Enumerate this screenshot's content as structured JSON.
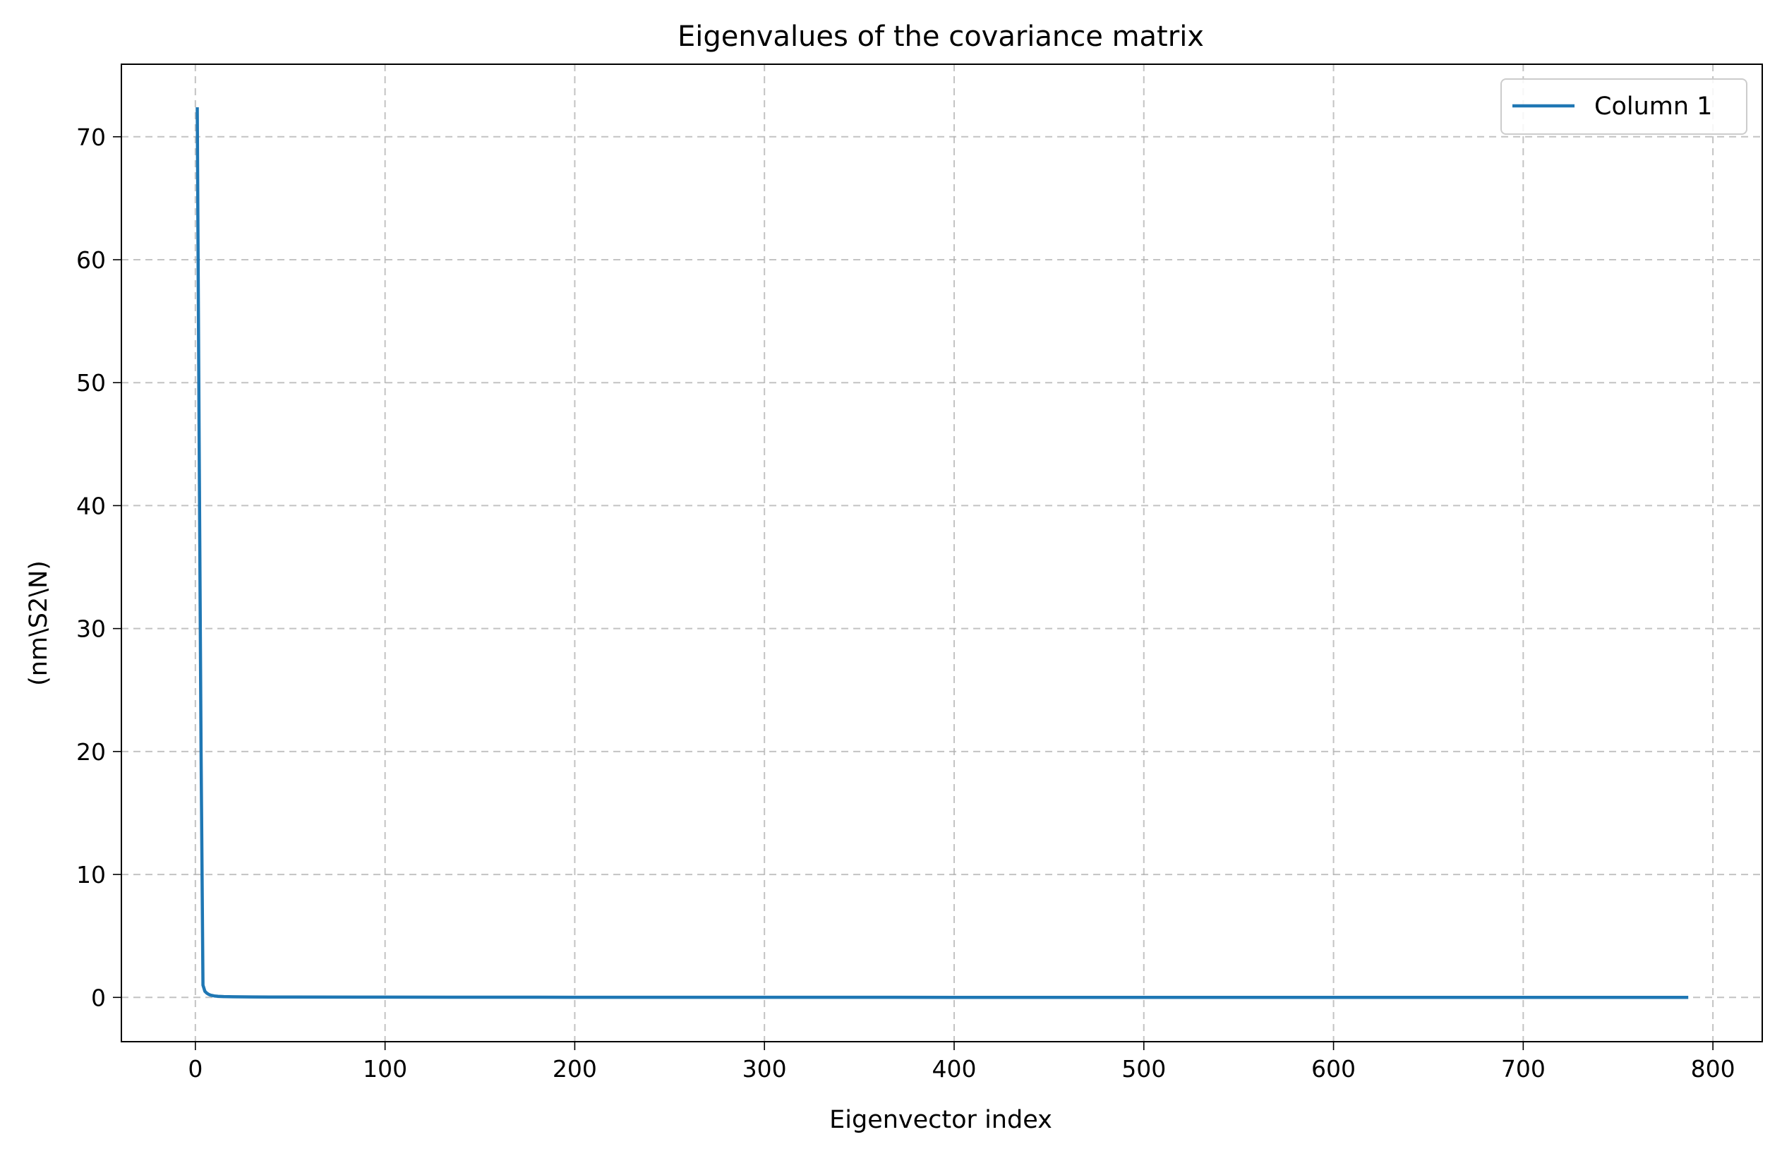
{
  "chart_data": {
    "type": "line",
    "title": "Eigenvalues of the covariance matrix",
    "xlabel": "Eigenvector index",
    "ylabel": "(nm\\S2\\N)",
    "xlim": [
      -39,
      826
    ],
    "ylim": [
      -3.6,
      75.9
    ],
    "xticks": [
      0,
      100,
      200,
      300,
      400,
      500,
      600,
      700,
      800
    ],
    "yticks": [
      0,
      10,
      20,
      30,
      40,
      50,
      60,
      70
    ],
    "grid": true,
    "legend_position": "top-right",
    "series": [
      {
        "name": "Column 1",
        "color": "#1f77b4",
        "x": [
          1,
          2,
          3,
          4,
          5,
          6,
          7,
          8,
          10,
          12,
          15,
          20,
          30,
          50,
          100,
          200,
          400,
          600,
          787
        ],
        "y": [
          72.4,
          45.0,
          20.0,
          1.0,
          0.5,
          0.35,
          0.25,
          0.18,
          0.12,
          0.09,
          0.07,
          0.05,
          0.04,
          0.03,
          0.02,
          0.01,
          0.005,
          0.003,
          0.001
        ]
      }
    ]
  }
}
